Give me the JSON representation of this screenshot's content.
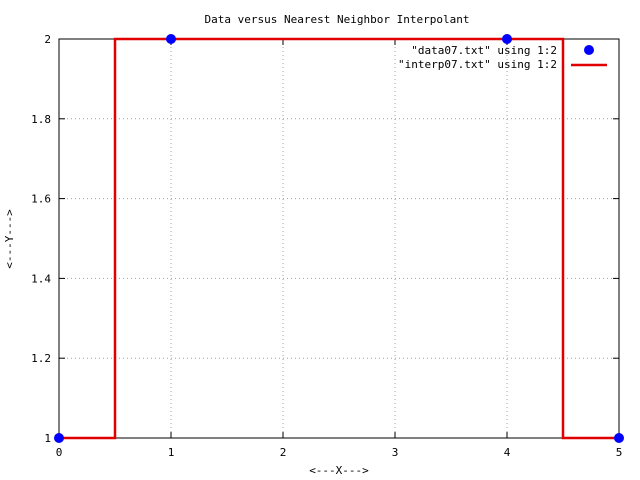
{
  "chart_data": {
    "type": "line",
    "title": "Data versus Nearest Neighbor Interpolant",
    "xlabel": "<---X--->",
    "ylabel": "<---Y--->",
    "xlim": [
      0,
      5
    ],
    "ylim": [
      1,
      2
    ],
    "xticks": [
      "0",
      "1",
      "2",
      "3",
      "4",
      "5"
    ],
    "yticks": [
      "1",
      "1.2",
      "1.4",
      "1.6",
      "1.8",
      "2"
    ],
    "grid": true,
    "legend_position": "top-right",
    "series": [
      {
        "name": "\"data07.txt\" using 1:2",
        "kind": "points",
        "color": "#0000ff",
        "x": [
          0,
          1,
          4,
          5
        ],
        "y": [
          1,
          2,
          2,
          1
        ]
      },
      {
        "name": "\"interp07.txt\" using 1:2",
        "kind": "line",
        "color": "#e00000",
        "x": [
          0,
          0.5,
          0.5,
          0.5,
          4.5,
          4.5,
          4.5,
          5
        ],
        "y": [
          1,
          1,
          1.5,
          2,
          2,
          1.5,
          1,
          1
        ]
      }
    ]
  }
}
